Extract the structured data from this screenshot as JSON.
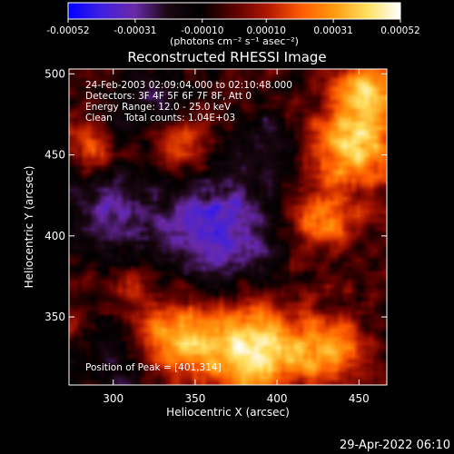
{
  "colorbar": {
    "tick_labels": [
      "-0.00052",
      "-0.00031",
      "-0.00010",
      "0.00010",
      "0.00031",
      "0.00052"
    ],
    "unit_label": "(photons cm⁻² s⁻¹ asec⁻²)",
    "range": [
      -0.00052,
      0.00052
    ],
    "colormap": [
      "#0000ff",
      "#4020e0",
      "#6a2aa8",
      "#1a0610",
      "#000000",
      "#5a0000",
      "#b01800",
      "#ff5a00",
      "#ff9a10",
      "#ffe060",
      "#ffffff"
    ]
  },
  "chart_data": {
    "type": "heatmap",
    "title": "Reconstructed RHESSI Image",
    "xlabel": "Heliocentric X (arcsec)",
    "ylabel": "Heliocentric Y (arcsec)",
    "xlim": [
      273,
      467
    ],
    "ylim": [
      308,
      503
    ],
    "xticks": [
      300,
      350,
      400,
      450
    ],
    "yticks": [
      350,
      400,
      450,
      500
    ],
    "info_lines": [
      "24-Feb-2003 02:09:04.000 to 02:10:48.000",
      "Detectors: 3F 4F 5F 6F 7F 8F, Att 0",
      "Energy Range: 12.0 - 25.0 keV",
      "Clean    Total counts: 1.04E+03"
    ],
    "peak_label": "Position of Peak = [401,314]",
    "peak_xy": [
      401,
      314
    ],
    "sources": [
      {
        "x": 385,
        "y": 330,
        "peak": 0.0005,
        "sigma": 20
      },
      {
        "x": 340,
        "y": 338,
        "peak": 0.0004,
        "sigma": 16
      },
      {
        "x": 430,
        "y": 330,
        "peak": 0.00036,
        "sigma": 16
      },
      {
        "x": 445,
        "y": 455,
        "peak": 0.00044,
        "sigma": 18
      },
      {
        "x": 455,
        "y": 490,
        "peak": 0.00042,
        "sigma": 14
      },
      {
        "x": 425,
        "y": 410,
        "peak": 0.0003,
        "sigma": 14
      },
      {
        "x": 340,
        "y": 458,
        "peak": 0.00032,
        "sigma": 14
      },
      {
        "x": 285,
        "y": 455,
        "peak": 0.00024,
        "sigma": 12
      },
      {
        "x": 310,
        "y": 372,
        "peak": 0.00018,
        "sigma": 10
      },
      {
        "x": 300,
        "y": 415,
        "peak": -0.00024,
        "sigma": 22
      },
      {
        "x": 365,
        "y": 405,
        "peak": -0.00036,
        "sigma": 26
      },
      {
        "x": 325,
        "y": 480,
        "peak": -0.0002,
        "sigma": 18
      },
      {
        "x": 395,
        "y": 460,
        "peak": -0.00014,
        "sigma": 16
      },
      {
        "x": 300,
        "y": 320,
        "peak": -0.00016,
        "sigma": 14
      }
    ]
  },
  "footer": {
    "timestamp": "29-Apr-2022 06:10"
  }
}
